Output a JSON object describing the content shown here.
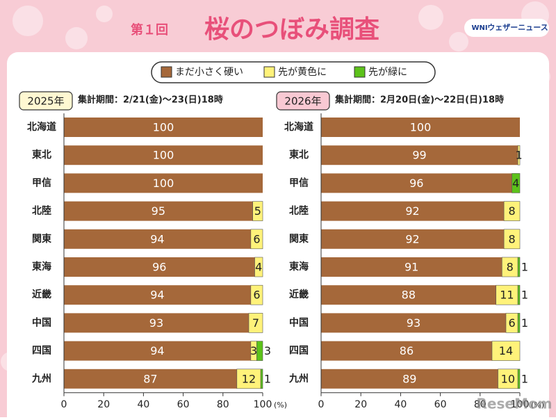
{
  "header": {
    "badge": "第１回",
    "title": "桜のつぼみ調査",
    "brand_logo": "WNI",
    "brand": "ウェザーニュース"
  },
  "watermark": "ReseMom",
  "chart_data": [
    {
      "type": "stacked-bar-horizontal",
      "label": "2025年",
      "subtitle": "集計期間：2/21(金)～23(日)18時",
      "categories": [
        "北海道",
        "東北",
        "甲信",
        "北陸",
        "関東",
        "東海",
        "近畿",
        "中国",
        "四国",
        "九州"
      ],
      "series": [
        {
          "name": "まだ小さく硬い",
          "color": "#a5683a",
          "values": [
            100,
            100,
            100,
            95,
            94,
            96,
            94,
            93,
            94,
            87
          ]
        },
        {
          "name": "先が黄色に",
          "color": "#fff27a",
          "values": [
            null,
            null,
            null,
            5,
            6,
            4,
            6,
            7,
            3,
            12
          ]
        },
        {
          "name": "先が緑に",
          "color": "#5cc21a",
          "values": [
            null,
            null,
            null,
            null,
            null,
            null,
            null,
            null,
            3,
            1
          ]
        }
      ],
      "xlim": [
        0,
        100
      ],
      "xticks": [
        0,
        20,
        40,
        60,
        80,
        100
      ],
      "x_unit": "(%)"
    },
    {
      "type": "stacked-bar-horizontal",
      "label": "2026年",
      "subtitle": "集計期間：2月20日(金)～22日(日)18時",
      "categories": [
        "北海道",
        "東北",
        "甲信",
        "北陸",
        "関東",
        "東海",
        "近畿",
        "中国",
        "四国",
        "九州"
      ],
      "series": [
        {
          "color": "#a5683a",
          "values": [
            100,
            99,
            96,
            92,
            92,
            91,
            88,
            93,
            86,
            89
          ]
        },
        {
          "color": "#fff27a",
          "values": [
            null,
            1,
            null,
            8,
            8,
            8,
            11,
            6,
            14,
            10
          ]
        },
        {
          "color": "#5cc21a",
          "values": [
            null,
            null,
            4,
            null,
            null,
            1,
            1,
            1,
            null,
            1
          ]
        }
      ],
      "xlim": [
        0,
        100
      ],
      "xticks": [
        0,
        20,
        40,
        60,
        80,
        100
      ],
      "x_unit": "(%)"
    }
  ]
}
